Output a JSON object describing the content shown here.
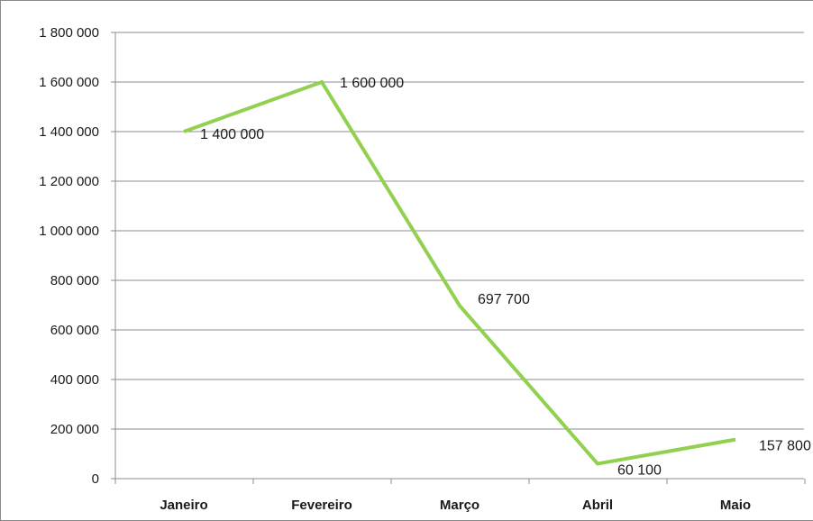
{
  "chart_data": {
    "type": "line",
    "categories": [
      "Janeiro",
      "Fevereiro",
      "Março",
      "Abril",
      "Maio"
    ],
    "series": [
      {
        "values": [
          1400000,
          1600000,
          697700,
          60100,
          157800
        ],
        "color": "#92d050"
      }
    ],
    "data_labels": [
      "1 400 000",
      "1 600 000",
      "697 700",
      "60 100",
      "157 800"
    ],
    "y_ticks": [
      "0",
      "200 000",
      "400 000",
      "600 000",
      "800 000",
      "1 000 000",
      "1 200 000",
      "1 400 000",
      "1 600 000",
      "1 800 000"
    ],
    "ylim": [
      0,
      1800000
    ],
    "y_step": 200000,
    "grid": true,
    "legend": "none"
  }
}
